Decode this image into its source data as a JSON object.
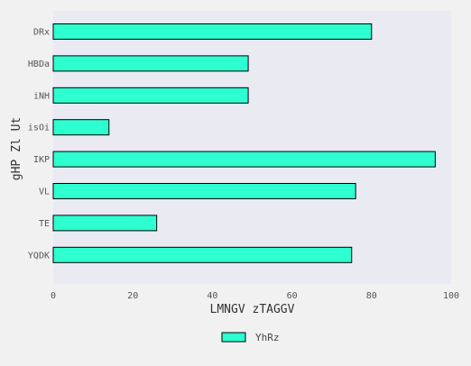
{
  "chart_data": {
    "type": "bar",
    "orientation": "horizontal",
    "categories": [
      "DRx",
      "HBDa",
      "iNH",
      "isOi",
      "IKP",
      "VL",
      "TE",
      "YQDK"
    ],
    "series": [
      {
        "name": "YhRz",
        "values": [
          80,
          49,
          49,
          14,
          96,
          76,
          26,
          75
        ],
        "color": "#2effd0"
      }
    ],
    "xlabel": "LMNGV zTAGGV",
    "ylabel": "gHP Zl Ut",
    "xlim": [
      0,
      100
    ],
    "xticks": [
      0,
      20,
      40,
      60,
      80,
      100
    ],
    "grid": false,
    "legend_position": "bottom-center",
    "colors": {
      "background": "#f1f1f1",
      "plot_background": "#eaeaf2",
      "bar_fill": "#2effd0",
      "bar_stroke": "#000000"
    }
  }
}
